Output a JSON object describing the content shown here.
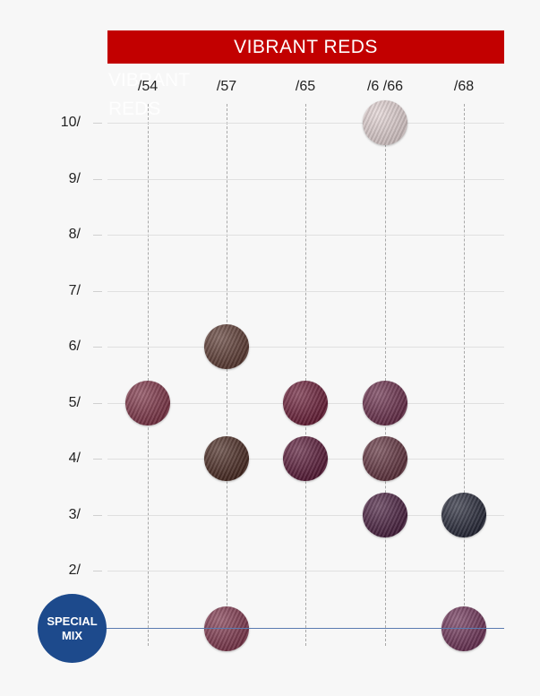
{
  "header": {
    "title": "VIBRANT REDS",
    "ghost_title": "VIBRANT\nREDS"
  },
  "columns": [
    "/54",
    "/57",
    "/65",
    "/6 /66",
    "/68"
  ],
  "rows": [
    "10/",
    "9/",
    "8/",
    "7/",
    "6/",
    "5/",
    "4/",
    "3/",
    "2/"
  ],
  "special_mix": {
    "line1": "SPECIAL",
    "line2": "MIX",
    "color": "#1d4a8c"
  },
  "swatches": [
    {
      "column": "/6 /66",
      "level": "10/",
      "color": "#e2d2d2"
    },
    {
      "column": "/57",
      "level": "6/",
      "color": "#5d3b33"
    },
    {
      "column": "/54",
      "level": "5/",
      "color": "#7e3447"
    },
    {
      "column": "/65",
      "level": "5/",
      "color": "#6b1e38"
    },
    {
      "column": "/6 /66",
      "level": "5/",
      "color": "#6a2e4b"
    },
    {
      "column": "/57",
      "level": "4/",
      "color": "#4a2a22"
    },
    {
      "column": "/65",
      "level": "4/",
      "color": "#5a1a38"
    },
    {
      "column": "/6 /66",
      "level": "4/",
      "color": "#62333f"
    },
    {
      "column": "/6 /66",
      "level": "3/",
      "color": "#4a2040"
    },
    {
      "column": "/68",
      "level": "3/",
      "color": "#262838"
    },
    {
      "column": "/57",
      "level": "SPECIAL MIX",
      "color": "#80384e"
    },
    {
      "column": "/68",
      "level": "SPECIAL MIX",
      "color": "#6f3458"
    }
  ],
  "colors": {
    "banner": "#c20000",
    "background": "#f7f7f7",
    "baseline": "#5a7bb0"
  }
}
